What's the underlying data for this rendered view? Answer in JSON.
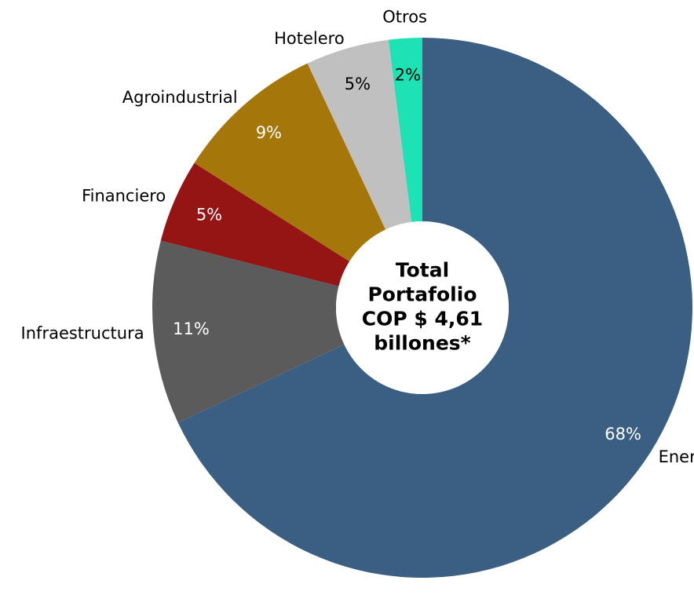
{
  "chart_data": {
    "type": "donut",
    "categories": [
      "Energía, y Gas",
      "Infraestructura",
      "Financiero",
      "Agroindustrial",
      "Hotelero",
      "Otros"
    ],
    "values": [
      68,
      11,
      5,
      9,
      5,
      2
    ],
    "value_labels": [
      "68%",
      "11%",
      "5%",
      "9%",
      "5%",
      "2%"
    ],
    "colors": [
      "#3a5f82",
      "#5b5b5b",
      "#951414",
      "#a5760a",
      "#c0c0c0",
      "#1de2b4"
    ],
    "center_label": [
      "Total",
      "Portafolio",
      "COP $ 4,61",
      "billones*"
    ]
  }
}
